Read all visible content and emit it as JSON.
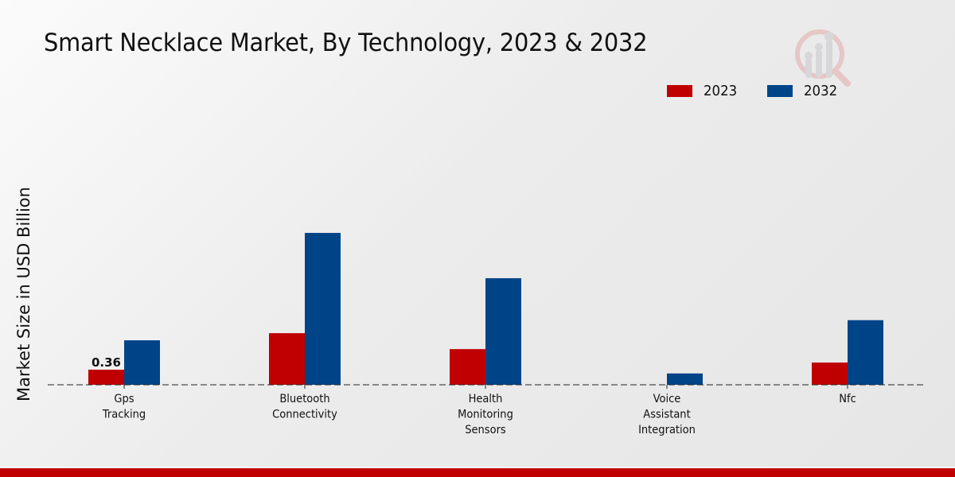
{
  "chart_data": {
    "type": "bar",
    "title": "Smart Necklace Market, By Technology, 2023 & 2032",
    "xlabel": "",
    "ylabel": "Market Size in USD Billion",
    "categories": [
      [
        "Gps",
        "Tracking"
      ],
      [
        "Bluetooth",
        "Connectivity"
      ],
      [
        "Health",
        "Monitoring",
        "Sensors"
      ],
      [
        "Voice",
        "Assistant",
        "Integration"
      ],
      [
        "Nfc"
      ]
    ],
    "series": [
      {
        "name": "2023",
        "color": "#c00000",
        "values": [
          0.36,
          1.23,
          0.85,
          0.0,
          0.53
        ]
      },
      {
        "name": "2032",
        "color": "#004488",
        "values": [
          1.06,
          3.62,
          2.54,
          0.27,
          1.54
        ]
      }
    ],
    "data_labels": [
      {
        "series": "2023",
        "category_index": 0,
        "text": "0.36"
      }
    ],
    "ylim": [
      0,
      4.5
    ],
    "grid": false,
    "legend_position": "top-right"
  }
}
